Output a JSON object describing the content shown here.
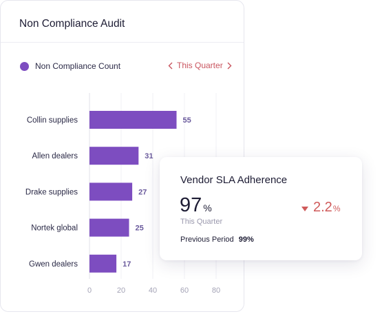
{
  "card": {
    "title": "Non Compliance Audit"
  },
  "period": {
    "label": "This Quarter"
  },
  "colors": {
    "bar": "#7d4dc0",
    "accent": "#c9555f",
    "negative": "#cf5a5a"
  },
  "icons": {
    "prev": "chevron-left-icon",
    "next": "chevron-right-icon",
    "trend": "triangle-down-icon"
  },
  "chart_data": {
    "type": "bar",
    "orientation": "horizontal",
    "categories": [
      "Collin supplies",
      "Allen dealers",
      "Drake supplies",
      "Nortek global",
      "Gwen dealers"
    ],
    "series": [
      {
        "name": "Non Compliance Count",
        "values": [
          55,
          31,
          27,
          25,
          17
        ]
      }
    ],
    "xticks": [
      0,
      20,
      40,
      60,
      80
    ],
    "xlim": [
      0,
      80
    ],
    "grid": true,
    "legend": "top-left",
    "data_labels": true
  },
  "kpi": {
    "title": "Vendor SLA Adherence",
    "value": "97",
    "unit": "%",
    "period": "This Quarter",
    "change": "2.2",
    "change_unit": "%",
    "previous_label": "Previous Period",
    "previous_value": "99%"
  }
}
